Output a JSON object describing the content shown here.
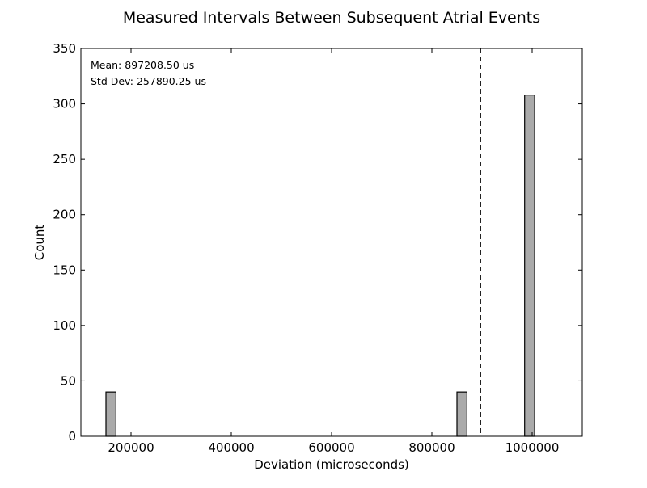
{
  "chart_data": {
    "type": "bar",
    "title": "Measured Intervals Between Subsequent Atrial Events",
    "xlabel": "Deviation (microseconds)",
    "ylabel": "Count",
    "xlim": [
      100000,
      1100000
    ],
    "ylim": [
      0,
      350
    ],
    "xticks": [
      200000,
      400000,
      600000,
      800000,
      1000000
    ],
    "yticks": [
      0,
      50,
      100,
      150,
      200,
      250,
      300,
      350
    ],
    "bars": [
      {
        "x_start": 150000,
        "x_end": 170000,
        "value": 40
      },
      {
        "x_start": 850000,
        "x_end": 870000,
        "value": 40
      },
      {
        "x_start": 985000,
        "x_end": 1005000,
        "value": 308
      }
    ],
    "mean_line": 897208.5,
    "annotations": {
      "mean_text": "Mean: 897208.50 us",
      "std_text": "Std Dev: 257890.25 us"
    },
    "grid": false,
    "colors": {
      "bar_fill": "#aaaaaa",
      "bar_edge": "#000000",
      "axis": "#000000"
    }
  }
}
